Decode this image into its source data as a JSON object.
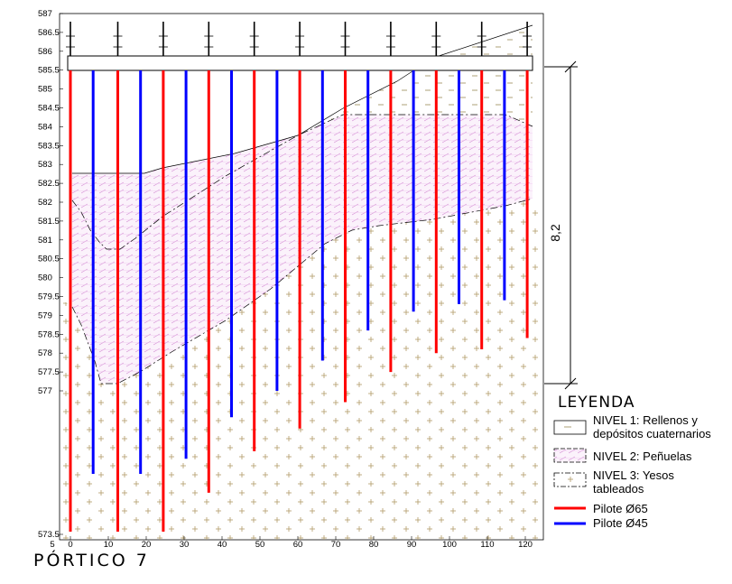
{
  "chart_data": {
    "type": "section",
    "title": "PÓRTICO 7",
    "xlim": [
      -5,
      122
    ],
    "ylim": [
      573.5,
      587
    ],
    "yticks": [
      "587",
      "586.5",
      "586",
      "585.5",
      "585",
      "584.5",
      "584",
      "583.5",
      "583",
      "582.5",
      "582",
      "581.5",
      "581",
      "580.5",
      "580",
      "579.5",
      "579",
      "578.5",
      "578",
      "577.5",
      "577",
      "573.5"
    ],
    "xticks": [
      "5",
      "0",
      "10",
      "20",
      "30",
      "40",
      "50",
      "60",
      "70",
      "80",
      "90",
      "100",
      "110",
      "120"
    ],
    "dimension_label": "8,2",
    "dimension_range": [
      577.5,
      585.7
    ],
    "cap_beam_y": [
      585.7,
      586.1
    ],
    "piles": [
      {
        "x": 0,
        "d": 65,
        "bottom": 573.5
      },
      {
        "x": 6,
        "d": 45,
        "bottom": 574.8
      },
      {
        "x": 12.5,
        "d": 65,
        "bottom": 573.5
      },
      {
        "x": 18.5,
        "d": 45,
        "bottom": 574.8
      },
      {
        "x": 24.5,
        "d": 65,
        "bottom": 573.5
      },
      {
        "x": 30.5,
        "d": 45,
        "bottom": 575.2
      },
      {
        "x": 36.5,
        "d": 65,
        "bottom": 574.3
      },
      {
        "x": 42.5,
        "d": 45,
        "bottom": 576.3
      },
      {
        "x": 48.5,
        "d": 65,
        "bottom": 575.4
      },
      {
        "x": 54.5,
        "d": 45,
        "bottom": 577.0
      },
      {
        "x": 60.5,
        "d": 65,
        "bottom": 576.0
      },
      {
        "x": 66.5,
        "d": 45,
        "bottom": 577.8
      },
      {
        "x": 72.5,
        "d": 65,
        "bottom": 576.7
      },
      {
        "x": 78.5,
        "d": 45,
        "bottom": 578.6
      },
      {
        "x": 84.5,
        "d": 65,
        "bottom": 577.5
      },
      {
        "x": 90.5,
        "d": 45,
        "bottom": 579.1
      },
      {
        "x": 96.5,
        "d": 65,
        "bottom": 578.0
      },
      {
        "x": 102.5,
        "d": 45,
        "bottom": 579.3
      },
      {
        "x": 108.5,
        "d": 65,
        "bottom": 578.1
      },
      {
        "x": 114.5,
        "d": 45,
        "bottom": 579.4
      },
      {
        "x": 120.5,
        "d": 65,
        "bottom": 578.4
      }
    ]
  },
  "legend": {
    "title": "LEYENDA",
    "nivel1": [
      "NIVEL 1: Rellenos y",
      "depósitos cuaternarios"
    ],
    "nivel2": "NIVEL 2: Peñuelas",
    "nivel3": [
      "NIVEL 3: Yesos",
      "tableados"
    ],
    "pile65": "Pilote Ø65",
    "pile45": "Pilote Ø45",
    "color65": "#ff0000",
    "color45": "#0000ff"
  }
}
